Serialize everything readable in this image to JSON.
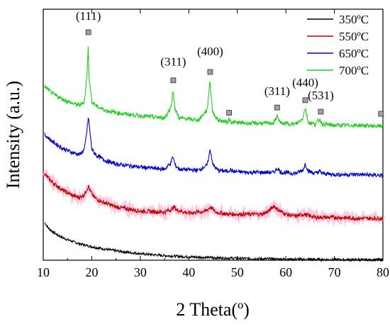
{
  "chart_data": {
    "type": "line",
    "title": "",
    "xlabel": "2 Theta(º)",
    "ylabel": "Intensity (a.u.)",
    "xlim": [
      10,
      80
    ],
    "xticks": [
      "10",
      "20",
      "30",
      "40",
      "50",
      "60",
      "70",
      "80"
    ],
    "yticks_shown": false,
    "legend_position": "top-right",
    "series": [
      {
        "name": "350ºC",
        "color": "#000000",
        "x": [
          10.3,
          11,
          12,
          13,
          14,
          15,
          17,
          19,
          21,
          23,
          25,
          28,
          31,
          35,
          40,
          45,
          50,
          55,
          60,
          65,
          70,
          75,
          80
        ],
        "y": [
          1.8,
          1.55,
          1.35,
          1.2,
          1.08,
          0.98,
          0.82,
          0.7,
          0.6,
          0.52,
          0.45,
          0.36,
          0.29,
          0.22,
          0.16,
          0.12,
          0.09,
          0.07,
          0.05,
          0.04,
          0.03,
          0.02,
          0.02
        ]
      },
      {
        "name": "550ºC",
        "color": "#c00000",
        "x": [
          10.3,
          12,
          14,
          16,
          17.5,
          18.5,
          19.0,
          19.3,
          19.7,
          20.5,
          22,
          25,
          30,
          35,
          36.5,
          37,
          37.5,
          40,
          43.5,
          44.5,
          45.5,
          48,
          52,
          55,
          56.5,
          57.5,
          58.5,
          60,
          62,
          63.5,
          64.5,
          66,
          70,
          75,
          80
        ],
        "y": [
          4.1,
          3.7,
          3.35,
          3.1,
          3.0,
          3.15,
          3.4,
          3.55,
          3.3,
          3.0,
          2.8,
          2.55,
          2.35,
          2.3,
          2.45,
          2.55,
          2.4,
          2.25,
          2.35,
          2.55,
          2.3,
          2.2,
          2.2,
          2.2,
          2.35,
          2.6,
          2.4,
          2.2,
          2.1,
          2.2,
          2.15,
          2.05,
          2.05,
          2.0,
          2.0
        ]
      },
      {
        "name": "650ºC",
        "color": "#0000c8",
        "x": [
          10.3,
          12,
          14,
          16,
          17.5,
          18.5,
          19.0,
          19.3,
          19.6,
          20,
          21,
          23,
          25,
          30,
          35,
          36.3,
          36.7,
          37.2,
          38,
          42,
          43.8,
          44.4,
          45,
          46,
          48,
          48.5,
          49,
          52,
          57.5,
          58.3,
          59,
          62,
          63.5,
          64.0,
          64.7,
          66,
          67.0,
          67.5,
          70,
          75,
          80
        ],
        "y": [
          6.0,
          5.65,
          5.35,
          5.15,
          5.05,
          5.3,
          6.2,
          6.85,
          6.2,
          5.3,
          5.0,
          4.75,
          4.6,
          4.45,
          4.35,
          4.65,
          4.95,
          4.55,
          4.35,
          4.3,
          4.55,
          5.3,
          4.55,
          4.3,
          4.25,
          4.35,
          4.25,
          4.2,
          4.2,
          4.4,
          4.2,
          4.15,
          4.3,
          4.6,
          4.25,
          4.15,
          4.25,
          4.15,
          4.1,
          4.1,
          4.05
        ]
      },
      {
        "name": "700ºC",
        "color": "#22cc22",
        "x": [
          10.3,
          12,
          14,
          16,
          17.5,
          18.5,
          19.0,
          19.25,
          19.5,
          20,
          21,
          23,
          25,
          30,
          35,
          36.3,
          36.75,
          37.2,
          38,
          42,
          43.8,
          44.35,
          44.9,
          46,
          48,
          48.3,
          48.8,
          52,
          57.5,
          58.2,
          58.9,
          62,
          63.4,
          64.0,
          64.6,
          66,
          67.0,
          67.5,
          70,
          75,
          80
        ],
        "y": [
          8.3,
          7.95,
          7.7,
          7.5,
          7.4,
          7.6,
          8.8,
          10.2,
          8.6,
          7.6,
          7.35,
          7.15,
          7.05,
          6.9,
          6.8,
          7.3,
          8.1,
          7.2,
          6.8,
          6.7,
          7.2,
          8.6,
          7.1,
          6.7,
          6.6,
          6.75,
          6.6,
          6.55,
          6.55,
          6.9,
          6.55,
          6.5,
          6.75,
          7.3,
          6.6,
          6.5,
          6.75,
          6.5,
          6.45,
          6.45,
          6.4
        ]
      }
    ],
    "annotations": [
      {
        "text": "(111)",
        "x": 19.3,
        "marker_y": 10.9,
        "label_y": 11.5
      },
      {
        "text": "(311)",
        "x": 36.8,
        "marker_y": 8.6,
        "label_y": 9.3
      },
      {
        "text": "(400)",
        "x": 44.4,
        "marker_y": 9.0,
        "label_y": 9.8
      },
      {
        "text": "",
        "x": 48.3,
        "marker_y": 7.05
      },
      {
        "text": "(311)",
        "x": 58.2,
        "marker_y": 7.3,
        "label_y": 7.9
      },
      {
        "text": "(440)",
        "x": 64.0,
        "marker_y": 7.65,
        "label_y": 8.3
      },
      {
        "text": "(531)",
        "x": 67.2,
        "marker_y": 7.1,
        "label_y": 7.7
      },
      {
        "text": "",
        "x": 79.6,
        "marker_y": 7.0
      }
    ],
    "marker_color": "#a0a0a0"
  }
}
